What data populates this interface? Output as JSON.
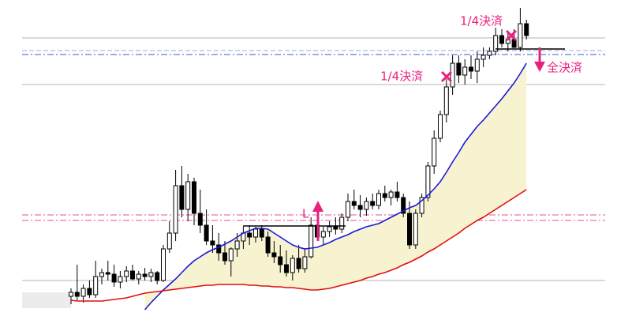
{
  "chart_data": {
    "type": "candlestick",
    "ylim": [
      0,
      405
    ],
    "open": [
      30,
      35,
      30,
      40,
      32,
      55,
      60,
      58,
      48,
      55,
      62,
      52,
      58,
      55,
      60,
      50,
      90,
      110,
      170,
      140,
      175,
      135,
      120,
      100,
      95,
      85,
      75,
      90,
      100,
      110,
      105,
      115,
      105,
      85,
      80,
      70,
      60,
      78,
      65,
      80,
      120,
      105,
      112,
      118,
      115,
      130,
      150,
      145,
      140,
      150,
      145,
      160,
      155,
      162,
      155,
      135,
      95,
      135,
      155,
      195,
      230,
      260,
      295,
      325,
      310,
      320,
      315,
      330,
      335,
      340,
      360,
      350,
      355,
      345,
      375
    ],
    "high": [
      40,
      70,
      45,
      50,
      75,
      65,
      75,
      70,
      62,
      68,
      70,
      62,
      66,
      65,
      62,
      95,
      125,
      190,
      195,
      185,
      180,
      165,
      140,
      120,
      110,
      100,
      92,
      110,
      118,
      120,
      118,
      120,
      112,
      100,
      95,
      88,
      82,
      95,
      90,
      130,
      130,
      118,
      125,
      130,
      135,
      160,
      165,
      158,
      155,
      160,
      165,
      170,
      165,
      175,
      160,
      150,
      140,
      160,
      200,
      240,
      265,
      305,
      335,
      335,
      330,
      335,
      340,
      345,
      345,
      370,
      368,
      365,
      368,
      395,
      380
    ],
    "low": [
      20,
      25,
      22,
      28,
      28,
      45,
      50,
      42,
      40,
      48,
      50,
      45,
      50,
      48,
      45,
      48,
      85,
      100,
      130,
      125,
      120,
      110,
      95,
      85,
      75,
      70,
      55,
      80,
      90,
      95,
      98,
      100,
      80,
      72,
      60,
      55,
      50,
      60,
      60,
      78,
      100,
      95,
      105,
      108,
      110,
      125,
      140,
      130,
      132,
      140,
      140,
      150,
      145,
      150,
      130,
      90,
      90,
      130,
      150,
      185,
      225,
      250,
      285,
      300,
      298,
      305,
      300,
      320,
      330,
      335,
      345,
      340,
      345,
      340,
      355
    ],
    "close": [
      35,
      30,
      40,
      32,
      55,
      60,
      58,
      48,
      55,
      62,
      52,
      58,
      55,
      60,
      50,
      90,
      110,
      170,
      140,
      175,
      135,
      120,
      100,
      95,
      85,
      75,
      90,
      100,
      110,
      105,
      115,
      105,
      85,
      80,
      70,
      60,
      78,
      65,
      80,
      120,
      105,
      112,
      118,
      115,
      130,
      150,
      145,
      140,
      150,
      145,
      160,
      155,
      162,
      155,
      135,
      95,
      135,
      155,
      195,
      230,
      260,
      295,
      325,
      310,
      320,
      315,
      330,
      335,
      340,
      360,
      350,
      355,
      345,
      375,
      360
    ],
    "series": [
      {
        "color": "#1a1adc",
        "values": [
          null,
          null,
          null,
          null,
          null,
          null,
          null,
          null,
          null,
          null,
          null,
          null,
          13,
          22,
          30,
          38,
          45,
          52,
          60,
          68,
          75,
          80,
          85,
          89,
          92,
          96,
          100,
          105,
          110,
          113,
          116,
          116,
          115,
          110,
          105,
          100,
          95,
          92,
          90,
          91,
          92,
          95,
          98,
          102,
          105,
          108,
          112,
          115,
          118,
          120,
          122,
          126,
          130,
          134,
          138,
          142,
          145,
          151,
          158,
          166,
          175,
          187,
          200,
          212,
          225,
          235,
          245,
          253,
          262,
          271,
          280,
          290,
          300,
          312,
          325
        ]
      },
      {
        "color": "#e0100c",
        "values": [
          25,
          24,
          24,
          24,
          24,
          24,
          25,
          26,
          27,
          28,
          30,
          32,
          34,
          35,
          36,
          37,
          38,
          39,
          40,
          41,
          42,
          43,
          44,
          44,
          45,
          45,
          45,
          45,
          45,
          44,
          44,
          43,
          43,
          42,
          42,
          41,
          41,
          40,
          39,
          38,
          38,
          39,
          40,
          42,
          44,
          46,
          48,
          50,
          53,
          55,
          58,
          60,
          63,
          66,
          70,
          73,
          77,
          81,
          86,
          90,
          95,
          100,
          105,
          110,
          116,
          121,
          126,
          130,
          135,
          140,
          145,
          150,
          155,
          160,
          165
        ]
      }
    ],
    "levels": [
      {
        "value": 357,
        "color": "#b4b4b4",
        "style": "solid"
      },
      {
        "value": 298,
        "color": "#b4b4b4",
        "style": "solid"
      },
      {
        "value": 50,
        "color": "#b4b4b4",
        "style": "solid"
      },
      {
        "value": 341,
        "color": "#9aa8e0",
        "style": "dash"
      },
      {
        "value": 336,
        "color": "#3a5ad0",
        "style": "dashdot"
      },
      {
        "value": 133,
        "color": "#e0509a",
        "style": "dashdot"
      },
      {
        "value": 126,
        "color": "#e0509a",
        "style": "dashdot"
      }
    ],
    "annotations": [
      "1/4決済",
      "1/4決済",
      "全決済",
      "L"
    ]
  }
}
